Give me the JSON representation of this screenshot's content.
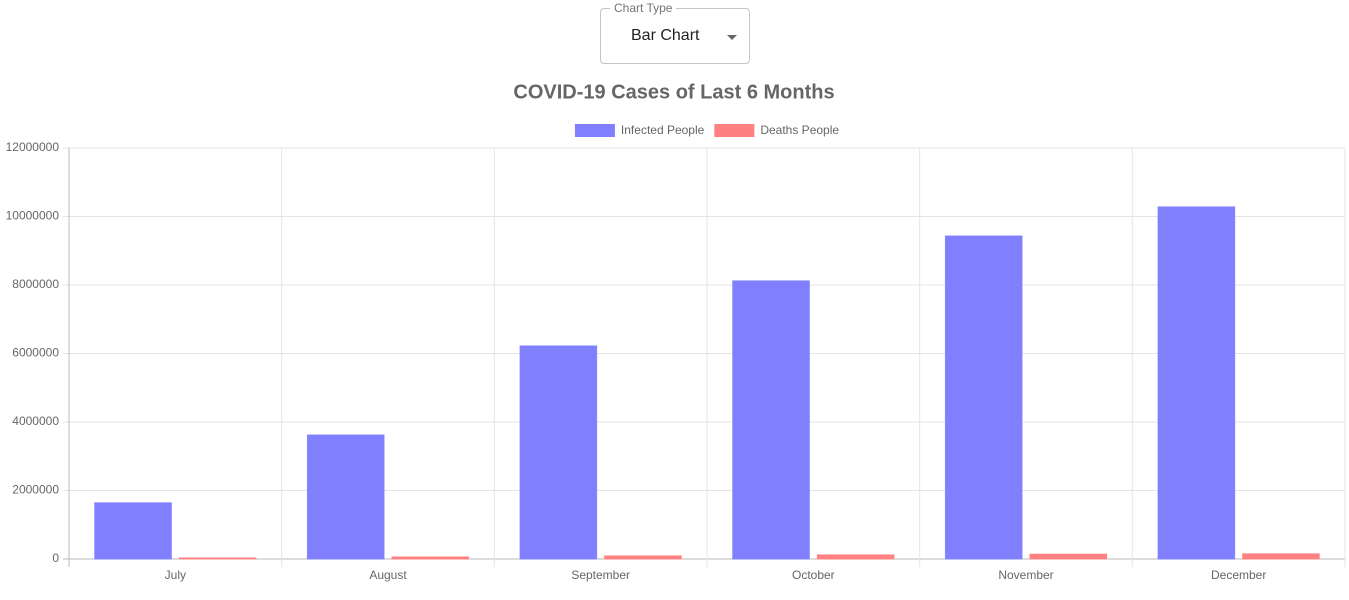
{
  "ui": {
    "select": {
      "label": "Chart Type",
      "value": "Bar Chart"
    }
  },
  "chart_data": {
    "type": "bar",
    "title": "COVID-19 Cases of Last 6 Months",
    "categories": [
      "July",
      "August",
      "September",
      "October",
      "November",
      "December"
    ],
    "series": [
      {
        "name": "Infected People",
        "color": "#8080ff",
        "values": [
          1640000,
          3620000,
          6220000,
          8120000,
          9430000,
          10280000
        ]
      },
      {
        "name": "Deaths People",
        "color": "#ff8080",
        "values": [
          30000,
          60000,
          90000,
          120000,
          140000,
          150000
        ]
      }
    ],
    "ylim": [
      0,
      12000000
    ],
    "yticks": [
      0,
      2000000,
      4000000,
      6000000,
      8000000,
      10000000,
      12000000
    ],
    "grid": true,
    "legend": "top"
  }
}
